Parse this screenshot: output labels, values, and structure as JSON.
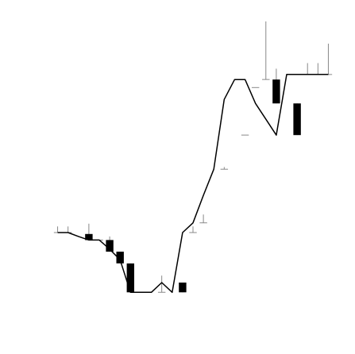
{
  "chart_data": {
    "type": "candlestick",
    "title": "",
    "xlabel": "",
    "ylabel": "",
    "grid": false,
    "legend": "none",
    "axes_visible": false,
    "x": [
      1,
      2,
      3,
      4,
      5,
      6,
      7,
      8,
      9,
      10,
      11,
      12,
      13,
      14,
      15,
      16,
      17,
      18,
      19,
      20,
      21,
      22,
      23,
      24,
      25,
      26,
      27
    ],
    "ylim": [
      0,
      100
    ],
    "xlim": [
      0.5,
      27.5
    ],
    "line": [
      24.0,
      24.0,
      22.6,
      21.3,
      21.3,
      18.0,
      14.2,
      2.5,
      2.5,
      2.5,
      6.0,
      2.5,
      24.0,
      27.5,
      37.4,
      46.8,
      71.9,
      79.1,
      79.1,
      70.5,
      64.8,
      59.1,
      80.9,
      80.9,
      80.9,
      80.9,
      80.9
    ],
    "candles": [
      {
        "x": 1,
        "open": 24.0,
        "close": 24.0,
        "high": 26.2,
        "low": 24.0
      },
      {
        "x": 2,
        "open": 24.0,
        "close": 24.0,
        "high": 26.2,
        "low": 24.0
      },
      {
        "x": 4,
        "open": 23.5,
        "close": 21.3,
        "high": 27.2,
        "low": 21.3
      },
      {
        "x": 5,
        "open": 21.3,
        "close": 21.3,
        "high": 21.3,
        "low": 21.3
      },
      {
        "x": 6,
        "open": 21.3,
        "close": 17.1,
        "high": 22.6,
        "low": 17.1
      },
      {
        "x": 7,
        "open": 17.1,
        "close": 12.9,
        "high": 17.1,
        "low": 12.9
      },
      {
        "x": 8,
        "open": 12.9,
        "close": 2.5,
        "high": 12.9,
        "low": 2.5
      },
      {
        "x": 11,
        "open": 2.5,
        "close": 2.5,
        "high": 8.5,
        "low": 2.5
      },
      {
        "x": 13,
        "open": 6.0,
        "close": 2.5,
        "high": 6.0,
        "low": 2.5
      },
      {
        "x": 14,
        "open": 24.0,
        "close": 24.0,
        "high": 26.2,
        "low": 24.0
      },
      {
        "x": 15,
        "open": 27.5,
        "close": 27.5,
        "high": 30.5,
        "low": 27.5
      },
      {
        "x": 17,
        "open": 46.8,
        "close": 46.8,
        "high": 47.6,
        "low": 46.8
      },
      {
        "x": 19,
        "open": 59.1,
        "close": 59.1,
        "high": 59.1,
        "low": 59.1
      },
      {
        "x": 20,
        "open": 76.2,
        "close": 76.2,
        "high": 76.2,
        "low": 76.2
      },
      {
        "x": 21,
        "open": 79.1,
        "close": 79.1,
        "high": 100.0,
        "low": 79.1
      },
      {
        "x": 22,
        "open": 79.1,
        "close": 70.5,
        "high": 83.0,
        "low": 70.5
      },
      {
        "x": 24,
        "open": 70.5,
        "close": 59.1,
        "high": 70.5,
        "low": 59.1
      },
      {
        "x": 25,
        "open": 80.9,
        "close": 80.9,
        "high": 85.0,
        "low": 80.9
      },
      {
        "x": 26,
        "open": 80.9,
        "close": 80.9,
        "high": 85.0,
        "low": 80.9
      },
      {
        "x": 27,
        "open": 80.9,
        "close": 80.9,
        "high": 92.0,
        "low": 80.9
      }
    ],
    "colors": {
      "line": "#000000",
      "body": "#000000",
      "wick": "#888888",
      "background": "#ffffff"
    }
  }
}
